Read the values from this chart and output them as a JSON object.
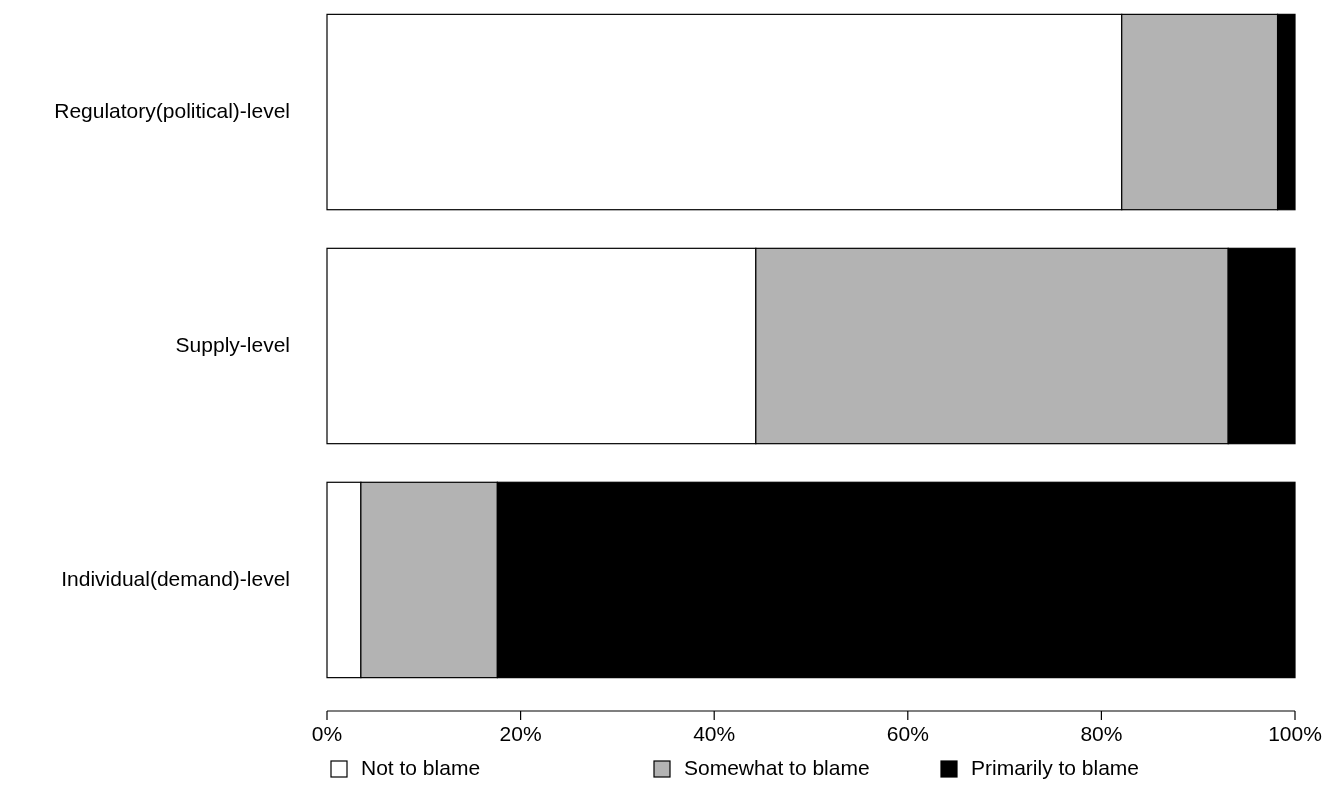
{
  "chart_data": {
    "type": "bar",
    "orientation": "horizontal",
    "stacked": true,
    "categories": [
      "Regulatory(political)-level",
      "Supply-level",
      "Individual(demand)-level"
    ],
    "series": [
      {
        "name": "Not to blame",
        "color": "#ffffff",
        "values": [
          82.1,
          44.3,
          3.5
        ]
      },
      {
        "name": "Somewhat to blame",
        "color": "#b3b3b3",
        "values": [
          16.1,
          48.8,
          14.1
        ]
      },
      {
        "name": "Primarily to blame",
        "color": "#000000",
        "values": [
          1.8,
          6.9,
          82.4
        ]
      }
    ],
    "xlim": [
      0,
      100
    ],
    "xticks": [
      {
        "value": 0,
        "label": "0%"
      },
      {
        "value": 20,
        "label": "20%"
      },
      {
        "value": 40,
        "label": "40%"
      },
      {
        "value": 60,
        "label": "60%"
      },
      {
        "value": 80,
        "label": "80%"
      },
      {
        "value": 100,
        "label": "100%"
      }
    ],
    "grid": false,
    "legend": "bottom"
  }
}
